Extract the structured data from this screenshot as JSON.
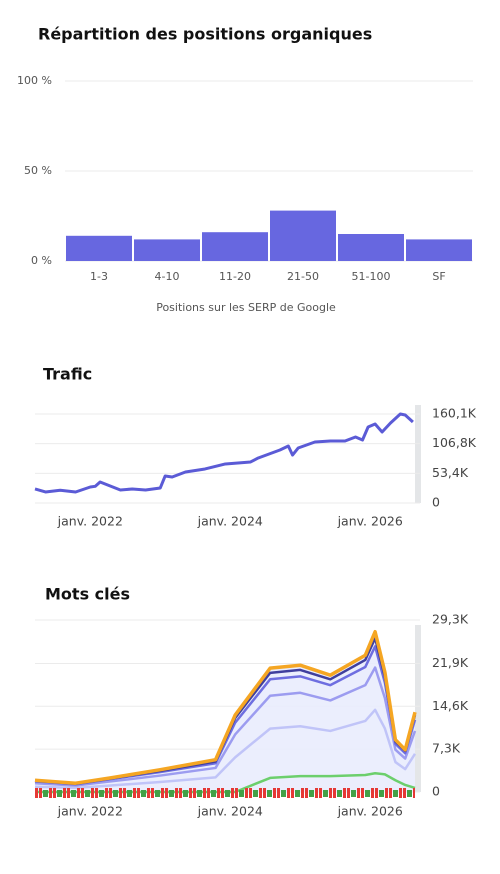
{
  "chart_data": [
    {
      "type": "bar",
      "title": "Répartition des positions organiques",
      "x_label": "Positions sur les SERP de Google",
      "categories": [
        "1-3",
        "4-10",
        "11-20",
        "21-50",
        "51-100",
        "SF"
      ],
      "values": [
        14,
        12,
        16,
        28,
        15,
        12
      ],
      "color": "#6767e0",
      "ylim": [
        0,
        100
      ],
      "yticks": [
        {
          "value": 0,
          "label": "0 %"
        },
        {
          "value": 50,
          "label": "50 %"
        },
        {
          "value": 100,
          "label": "100 %"
        }
      ],
      "grid": true
    },
    {
      "type": "line",
      "title": "Trafic",
      "x": [
        2021.21,
        2021.36,
        2021.57,
        2021.79,
        2022.0,
        2022.07,
        2022.14,
        2022.43,
        2022.6,
        2022.79,
        2023.0,
        2023.07,
        2023.17,
        2023.36,
        2023.64,
        2023.93,
        2024.29,
        2024.4,
        2024.71,
        2024.83,
        2024.89,
        2024.97,
        2025.21,
        2025.43,
        2025.64,
        2025.79,
        2025.89,
        2025.97,
        2026.07,
        2026.17,
        2026.29,
        2026.43,
        2026.5,
        2026.61
      ],
      "series": [
        {
          "color": "#5b5bd6",
          "values": [
            25200,
            19800,
            23000,
            19800,
            28800,
            30000,
            37800,
            23400,
            25200,
            23400,
            27000,
            48600,
            46800,
            55800,
            61200,
            70200,
            73800,
            81000,
            95300,
            102500,
            86300,
            98900,
            109700,
            111500,
            111500,
            118700,
            113300,
            136700,
            142100,
            127700,
            143900,
            160100,
            158300,
            145700
          ]
        }
      ],
      "xlim": [
        2021.21,
        2026.64
      ],
      "xticks": [
        {
          "value": 2022,
          "label": "janv. 2022"
        },
        {
          "value": 2024,
          "label": "janv. 2024"
        },
        {
          "value": 2026,
          "label": "janv. 2026"
        }
      ],
      "ylim": [
        0,
        160100
      ],
      "yticks": [
        0,
        {
          "value": 53400,
          "label": "53,4K"
        },
        {
          "value": 106800,
          "label": "106,8K"
        },
        {
          "value": 160100,
          "label": "160,1K"
        }
      ],
      "grid": true
    },
    {
      "type": "area",
      "title": "Mots clés",
      "stacked": true,
      "x": [
        2021.21,
        2021.79,
        2022.29,
        2023.0,
        2023.79,
        2024.07,
        2024.57,
        2025.0,
        2025.43,
        2025.93,
        2026.07,
        2026.21,
        2026.36,
        2026.5,
        2026.64
      ],
      "series": [
        {
          "color": "#6ccf6c",
          "values": [
            0,
            0,
            0,
            0,
            0,
            0,
            2400,
            2700,
            2700,
            2900,
            3200,
            3000,
            2000,
            1200,
            700
          ]
        },
        {
          "color": "#c0c4f8",
          "values": [
            900,
            700,
            1100,
            1700,
            2500,
            5900,
            8400,
            8500,
            7700,
            9200,
            10800,
            7800,
            3100,
            2700,
            5800
          ]
        },
        {
          "color": "#9c9cf0",
          "values": [
            600,
            400,
            700,
            1100,
            1600,
            3900,
            5600,
            5700,
            5200,
            6100,
            7200,
            5200,
            2100,
            1800,
            3900
          ]
        },
        {
          "color": "#6e6ee0",
          "values": [
            300,
            200,
            400,
            600,
            800,
            2000,
            2800,
            2800,
            2600,
            3100,
            3600,
            2600,
            1000,
            900,
            1900
          ]
        },
        {
          "color": "#3f3f9e",
          "values": [
            100,
            100,
            100,
            200,
            300,
            800,
            1100,
            1100,
            1000,
            1200,
            1400,
            1000,
            400,
            400,
            800
          ]
        },
        {
          "color": "#f5a623",
          "values": [
            100,
            100,
            100,
            200,
            300,
            500,
            800,
            800,
            700,
            800,
            1100,
            800,
            300,
            200,
            500
          ]
        }
      ],
      "xlim": [
        2021.21,
        2026.64
      ],
      "xticks": [
        {
          "value": 2022,
          "label": "janv. 2022"
        },
        {
          "value": 2024,
          "label": "janv. 2024"
        },
        {
          "value": 2026,
          "label": "janv. 2026"
        }
      ],
      "ylim": [
        0,
        29300
      ],
      "yticks": [
        0,
        {
          "value": 7300,
          "label": "7,3K"
        },
        {
          "value": 14600,
          "label": "14,6K"
        },
        {
          "value": 21900,
          "label": "21,9K"
        },
        {
          "value": 29300,
          "label": "29,3K"
        }
      ],
      "grid": true
    }
  ]
}
